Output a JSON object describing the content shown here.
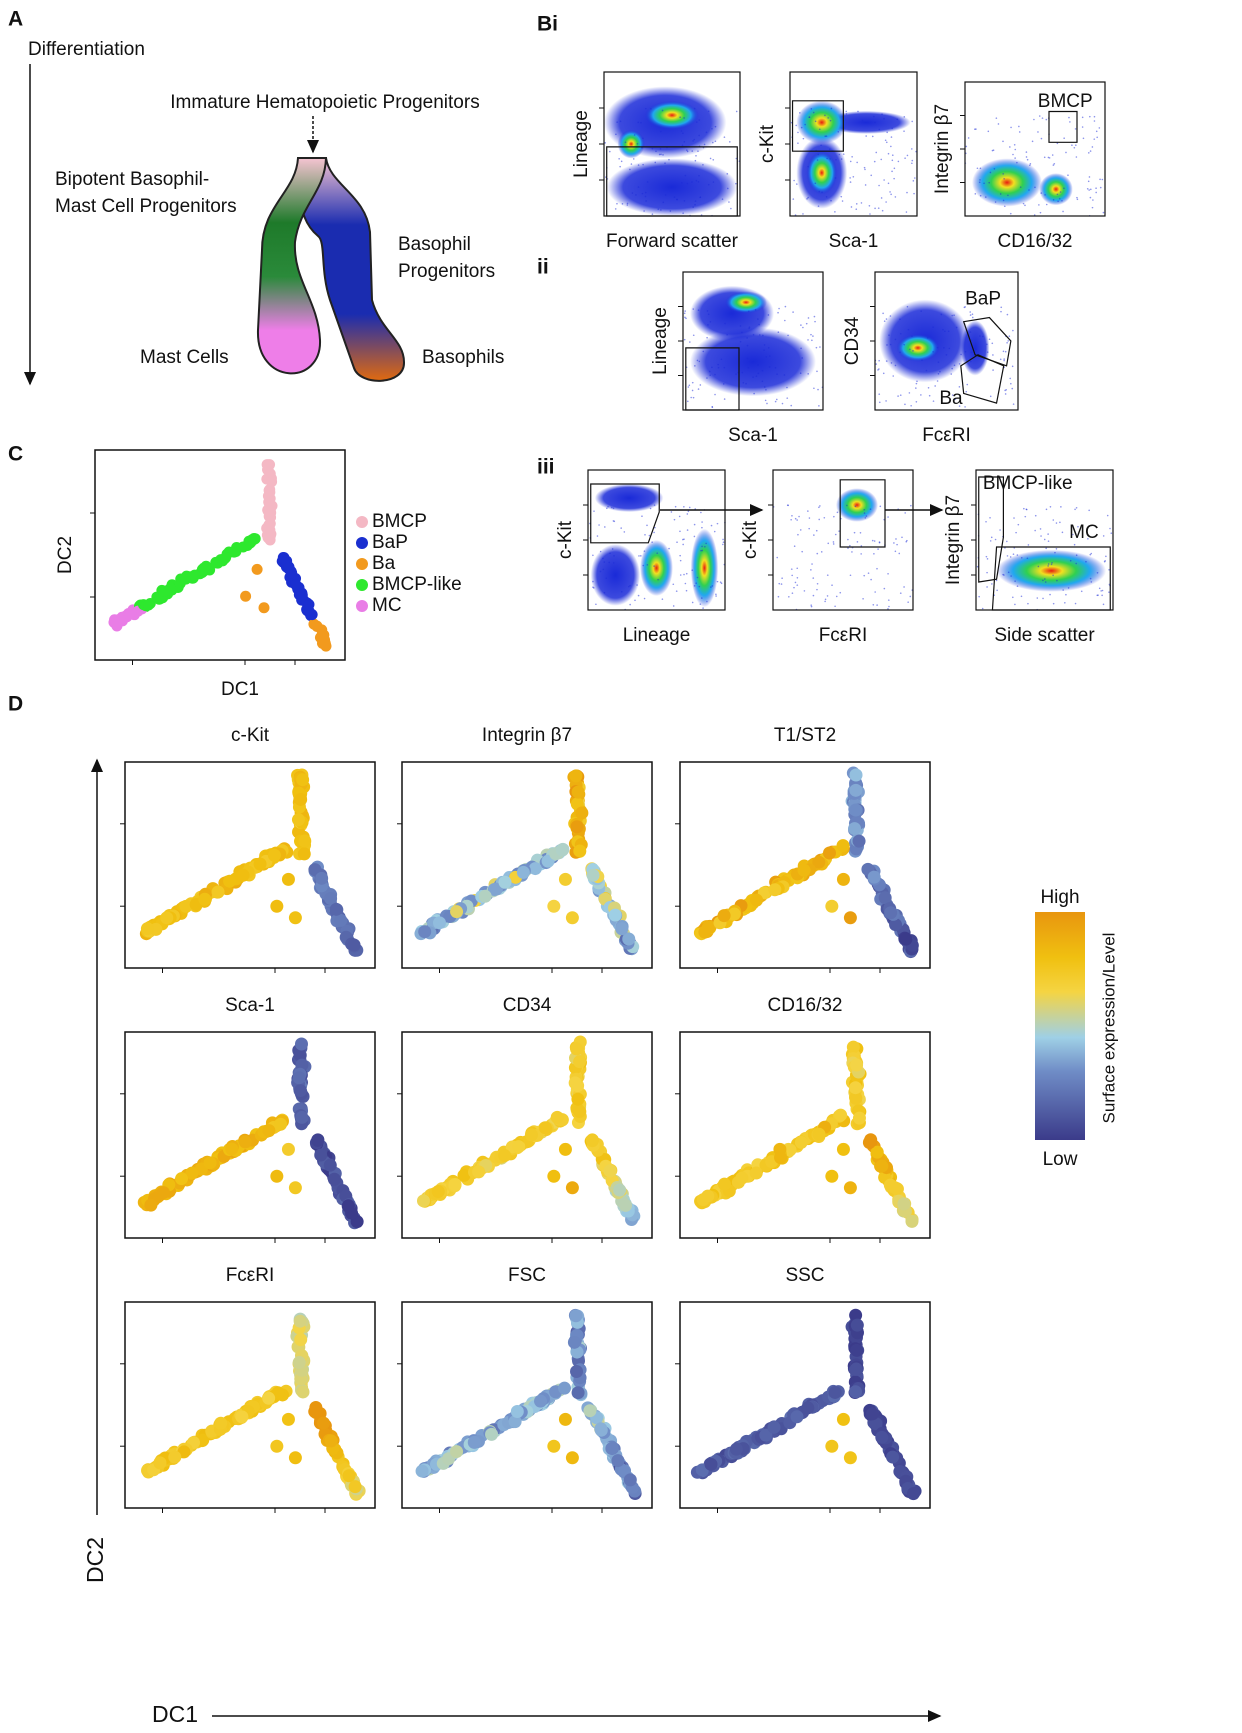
{
  "panel_a": {
    "label": "A",
    "axis_label": "Differentiation",
    "progenitors": "Immature Hematopoietic Progenitors",
    "bipotent": [
      "Bipotent Basophil-",
      "Mast Cell Progenitors"
    ],
    "basophil_progenitors": [
      "Basophil",
      "Progenitors"
    ],
    "mast_cells": "Mast Cells",
    "basophils": "Basophils"
  },
  "panel_b": {
    "rows": [
      {
        "label": "Bi",
        "plots": [
          {
            "x_label": "Forward scatter",
            "y_label": "Lineage"
          },
          {
            "x_label": "Sca-1",
            "y_label": "c-Kit"
          },
          {
            "x_label": "CD16/32",
            "y_label": "Integrin β7",
            "gates": [
              "BMCP"
            ]
          }
        ]
      },
      {
        "label": "ii",
        "plots": [
          {
            "x_label": "Sca-1",
            "y_label": "Lineage"
          },
          {
            "x_label": "FcεRI",
            "y_label": "CD34",
            "gates": [
              "BaP",
              "Ba"
            ]
          }
        ]
      },
      {
        "label": "iii",
        "plots": [
          {
            "x_label": "Lineage",
            "y_label": "c-Kit"
          },
          {
            "x_label": "FcεRI",
            "y_label": "c-Kit"
          },
          {
            "x_label": "Side scatter",
            "y_label": "Integrin β7",
            "gates": [
              "BMCP-like",
              "MC"
            ]
          }
        ]
      }
    ]
  },
  "panel_c": {
    "label": "C",
    "x_label": "DC1",
    "y_label": "DC2",
    "legend": [
      {
        "name": "BMCP",
        "color": "#f4b8c4"
      },
      {
        "name": "BaP",
        "color": "#1a2fd0"
      },
      {
        "name": "Ba",
        "color": "#f29a1e"
      },
      {
        "name": "BMCP-like",
        "color": "#2ee82e"
      },
      {
        "name": "MC",
        "color": "#e97de6"
      }
    ]
  },
  "panel_d": {
    "label": "D",
    "titles": [
      "c-Kit",
      "Integrin β7",
      "T1/ST2",
      "Sca-1",
      "CD34",
      "CD16/32",
      "FcεRI",
      "FSC",
      "SSC"
    ],
    "x_label": "DC1",
    "y_label": "DC2",
    "colorbar": {
      "high": "High",
      "low": "Low",
      "title": "Surface expression/Level"
    }
  }
}
